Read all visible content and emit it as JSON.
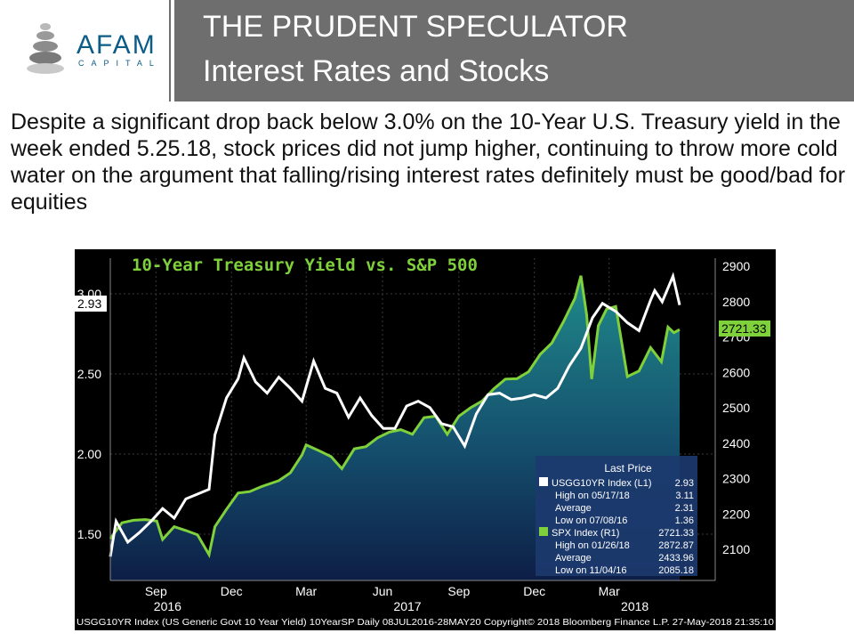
{
  "header": {
    "logo_text": "AFAM",
    "logo_sub": "CAPITAL",
    "title_line1": "THE PRUDENT SPECULATOR",
    "title_line2": "Interest Rates and Stocks"
  },
  "body_text": "Despite a significant drop back below 3.0% on the 10-Year U.S. Treasury yield in the week ended 5.25.18, stock prices did not jump higher, continuing to throw more cold water on the argument that falling/rising interest rates definitely must be good/bad for equities",
  "colors": {
    "header_bg": "#6e6e6e",
    "yield_line": "#ffffff",
    "spx_line": "#7fd13b",
    "chart_bg": "#000000",
    "legend_bg": "#1c3a6e"
  },
  "chart_data": {
    "type": "line",
    "title": "10-Year Treasury Yield vs. S&P 500",
    "x_tick_labels": [
      "Sep",
      "Dec",
      "Mar",
      "Jun",
      "Sep",
      "Dec",
      "Mar"
    ],
    "x_tick_dates": [
      "2016-09-01",
      "2016-12-01",
      "2017-03-01",
      "2017-06-01",
      "2017-09-01",
      "2017-12-01",
      "2018-03-01"
    ],
    "year_labels": [
      {
        "label": "2016",
        "date": "2016-09-15"
      },
      {
        "label": "2017",
        "date": "2017-07-01"
      },
      {
        "label": "2018",
        "date": "2018-04-01"
      }
    ],
    "x_range": [
      "2016-07-08",
      "2018-05-25"
    ],
    "left_axis": {
      "ticks": [
        "1.50",
        "2.00",
        "2.50",
        "3.00"
      ],
      "tick_values": [
        1.5,
        2.0,
        2.5,
        3.0
      ]
    },
    "right_axis": {
      "ticks": [
        "2100",
        "2200",
        "2300",
        "2400",
        "2500",
        "2600",
        "2700",
        "2800",
        "2900"
      ],
      "tick_values": [
        2100,
        2200,
        2300,
        2400,
        2500,
        2600,
        2700,
        2800,
        2900
      ]
    },
    "last_value_tags": {
      "left": "2.93",
      "right": "2721.33"
    },
    "series": [
      {
        "name": "USGG10YR Index",
        "axis": "left",
        "points": [
          [
            "2016-07-08",
            1.36
          ],
          [
            "2016-07-15",
            1.58
          ],
          [
            "2016-07-29",
            1.45
          ],
          [
            "2016-08-12",
            1.51
          ],
          [
            "2016-08-26",
            1.58
          ],
          [
            "2016-09-09",
            1.66
          ],
          [
            "2016-09-23",
            1.6
          ],
          [
            "2016-10-07",
            1.72
          ],
          [
            "2016-10-21",
            1.75
          ],
          [
            "2016-11-04",
            1.78
          ],
          [
            "2016-11-11",
            2.12
          ],
          [
            "2016-11-25",
            2.35
          ],
          [
            "2016-12-09",
            2.47
          ],
          [
            "2016-12-16",
            2.6
          ],
          [
            "2016-12-30",
            2.45
          ],
          [
            "2017-01-13",
            2.38
          ],
          [
            "2017-01-27",
            2.48
          ],
          [
            "2017-02-10",
            2.41
          ],
          [
            "2017-02-24",
            2.33
          ],
          [
            "2017-03-10",
            2.58
          ],
          [
            "2017-03-24",
            2.41
          ],
          [
            "2017-04-07",
            2.38
          ],
          [
            "2017-04-21",
            2.23
          ],
          [
            "2017-05-05",
            2.35
          ],
          [
            "2017-05-19",
            2.24
          ],
          [
            "2017-06-02",
            2.16
          ],
          [
            "2017-06-16",
            2.16
          ],
          [
            "2017-06-30",
            2.3
          ],
          [
            "2017-07-14",
            2.33
          ],
          [
            "2017-07-28",
            2.29
          ],
          [
            "2017-08-11",
            2.19
          ],
          [
            "2017-08-25",
            2.17
          ],
          [
            "2017-09-08",
            2.05
          ],
          [
            "2017-09-22",
            2.25
          ],
          [
            "2017-10-06",
            2.37
          ],
          [
            "2017-10-20",
            2.38
          ],
          [
            "2017-11-03",
            2.34
          ],
          [
            "2017-11-17",
            2.35
          ],
          [
            "2017-12-01",
            2.37
          ],
          [
            "2017-12-15",
            2.35
          ],
          [
            "2017-12-29",
            2.41
          ],
          [
            "2018-01-12",
            2.55
          ],
          [
            "2018-01-26",
            2.66
          ],
          [
            "2018-02-09",
            2.85
          ],
          [
            "2018-02-21",
            2.94
          ],
          [
            "2018-03-09",
            2.89
          ],
          [
            "2018-03-23",
            2.82
          ],
          [
            "2018-04-06",
            2.77
          ],
          [
            "2018-04-20",
            2.96
          ],
          [
            "2018-04-25",
            3.02
          ],
          [
            "2018-05-04",
            2.95
          ],
          [
            "2018-05-17",
            3.11
          ],
          [
            "2018-05-25",
            2.93
          ]
        ],
        "last_price": "2.93",
        "legend_suffix": "(L1)",
        "stats": [
          {
            "label": "High on 05/17/18",
            "value": "3.11"
          },
          {
            "label": "Average",
            "value": "2.31"
          },
          {
            "label": "Low on 07/08/16",
            "value": "1.36"
          }
        ]
      },
      {
        "name": "SPX Index",
        "axis": "right",
        "points": [
          [
            "2016-07-08",
            2130
          ],
          [
            "2016-07-22",
            2175
          ],
          [
            "2016-08-05",
            2182
          ],
          [
            "2016-08-19",
            2184
          ],
          [
            "2016-09-02",
            2180
          ],
          [
            "2016-09-09",
            2128
          ],
          [
            "2016-09-23",
            2164
          ],
          [
            "2016-10-07",
            2153
          ],
          [
            "2016-10-21",
            2141
          ],
          [
            "2016-11-04",
            2085
          ],
          [
            "2016-11-11",
            2164
          ],
          [
            "2016-11-25",
            2213
          ],
          [
            "2016-12-09",
            2259
          ],
          [
            "2016-12-23",
            2263
          ],
          [
            "2017-01-06",
            2277
          ],
          [
            "2017-01-27",
            2294
          ],
          [
            "2017-02-10",
            2316
          ],
          [
            "2017-02-24",
            2367
          ],
          [
            "2017-03-01",
            2395
          ],
          [
            "2017-03-17",
            2378
          ],
          [
            "2017-03-31",
            2362
          ],
          [
            "2017-04-13",
            2328
          ],
          [
            "2017-04-28",
            2384
          ],
          [
            "2017-05-12",
            2390
          ],
          [
            "2017-05-26",
            2415
          ],
          [
            "2017-06-09",
            2431
          ],
          [
            "2017-06-23",
            2438
          ],
          [
            "2017-07-07",
            2425
          ],
          [
            "2017-07-21",
            2472
          ],
          [
            "2017-08-04",
            2476
          ],
          [
            "2017-08-18",
            2425
          ],
          [
            "2017-09-01",
            2476
          ],
          [
            "2017-09-15",
            2500
          ],
          [
            "2017-09-29",
            2519
          ],
          [
            "2017-10-13",
            2553
          ],
          [
            "2017-10-27",
            2581
          ],
          [
            "2017-11-10",
            2582
          ],
          [
            "2017-11-24",
            2602
          ],
          [
            "2017-12-08",
            2651
          ],
          [
            "2017-12-22",
            2683
          ],
          [
            "2018-01-05",
            2743
          ],
          [
            "2018-01-19",
            2810
          ],
          [
            "2018-01-26",
            2873
          ],
          [
            "2018-02-02",
            2762
          ],
          [
            "2018-02-08",
            2581
          ],
          [
            "2018-02-16",
            2732
          ],
          [
            "2018-02-26",
            2779
          ],
          [
            "2018-03-09",
            2786
          ],
          [
            "2018-03-23",
            2588
          ],
          [
            "2018-04-06",
            2604
          ],
          [
            "2018-04-20",
            2670
          ],
          [
            "2018-05-03",
            2630
          ],
          [
            "2018-05-11",
            2728
          ],
          [
            "2018-05-18",
            2712
          ],
          [
            "2018-05-25",
            2721
          ]
        ],
        "last_price": "2721.33",
        "legend_suffix": "(R1)",
        "stats": [
          {
            "label": "High on 01/26/18",
            "value": "2872.87"
          },
          {
            "label": "Average",
            "value": "2433.96"
          },
          {
            "label": "Low on 11/04/16",
            "value": "2085.18"
          }
        ]
      }
    ],
    "legend": {
      "title": "Last Price",
      "placement": "bottom-right"
    },
    "footer": "USGG10YR Index (US Generic Govt 10 Year Yield) 10YearSP  Daily 08JUL2016-28MAY20 Copyright© 2018 Bloomberg Finance L.P.  27-May-2018 21:35:10"
  }
}
